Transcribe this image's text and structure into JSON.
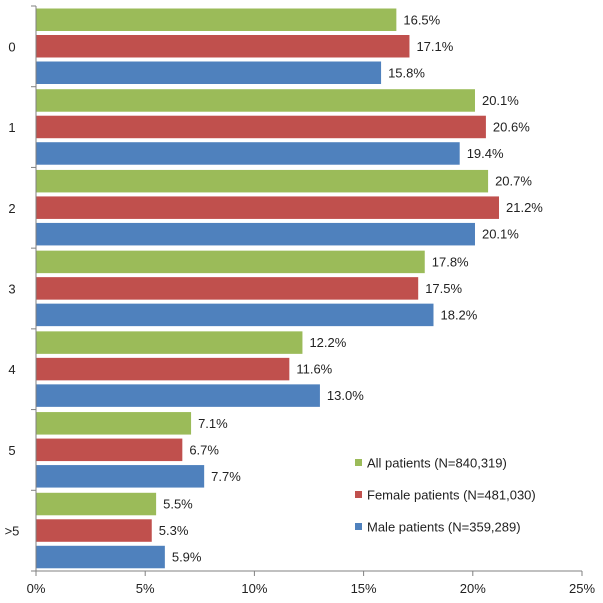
{
  "chart_data": {
    "type": "bar",
    "orientation": "horizontal",
    "title": "",
    "xlabel": "",
    "ylabel": "",
    "xlim": [
      0,
      25
    ],
    "x_ticks": [
      "0%",
      "5%",
      "10%",
      "15%",
      "20%",
      "25%"
    ],
    "grid": false,
    "legend_position": "bottom-right",
    "categories": [
      "0",
      "1",
      "2",
      "3",
      "4",
      "5",
      ">5"
    ],
    "series": [
      {
        "name": "All patients (N=840,319)",
        "color": "#9bbb59",
        "values": [
          16.5,
          20.1,
          20.7,
          17.8,
          12.2,
          7.1,
          5.5
        ],
        "labels": [
          "16.5%",
          "20.1%",
          "20.7%",
          "17.8%",
          "12.2%",
          "7.1%",
          "5.5%"
        ]
      },
      {
        "name": "Female patients (N=481,030)",
        "color": "#c0504d",
        "values": [
          17.1,
          20.6,
          21.2,
          17.5,
          11.6,
          6.7,
          5.3
        ],
        "labels": [
          "17.1%",
          "20.6%",
          "21.2%",
          "17.5%",
          "11.6%",
          "6.7%",
          "5.3%"
        ]
      },
      {
        "name": "Male patients (N=359,289)",
        "color": "#4f81bd",
        "values": [
          15.8,
          19.4,
          20.1,
          18.2,
          13.0,
          7.7,
          5.9
        ],
        "labels": [
          "15.8%",
          "19.4%",
          "20.1%",
          "18.2%",
          "13.0%",
          "7.7%",
          "5.9%"
        ]
      }
    ]
  }
}
